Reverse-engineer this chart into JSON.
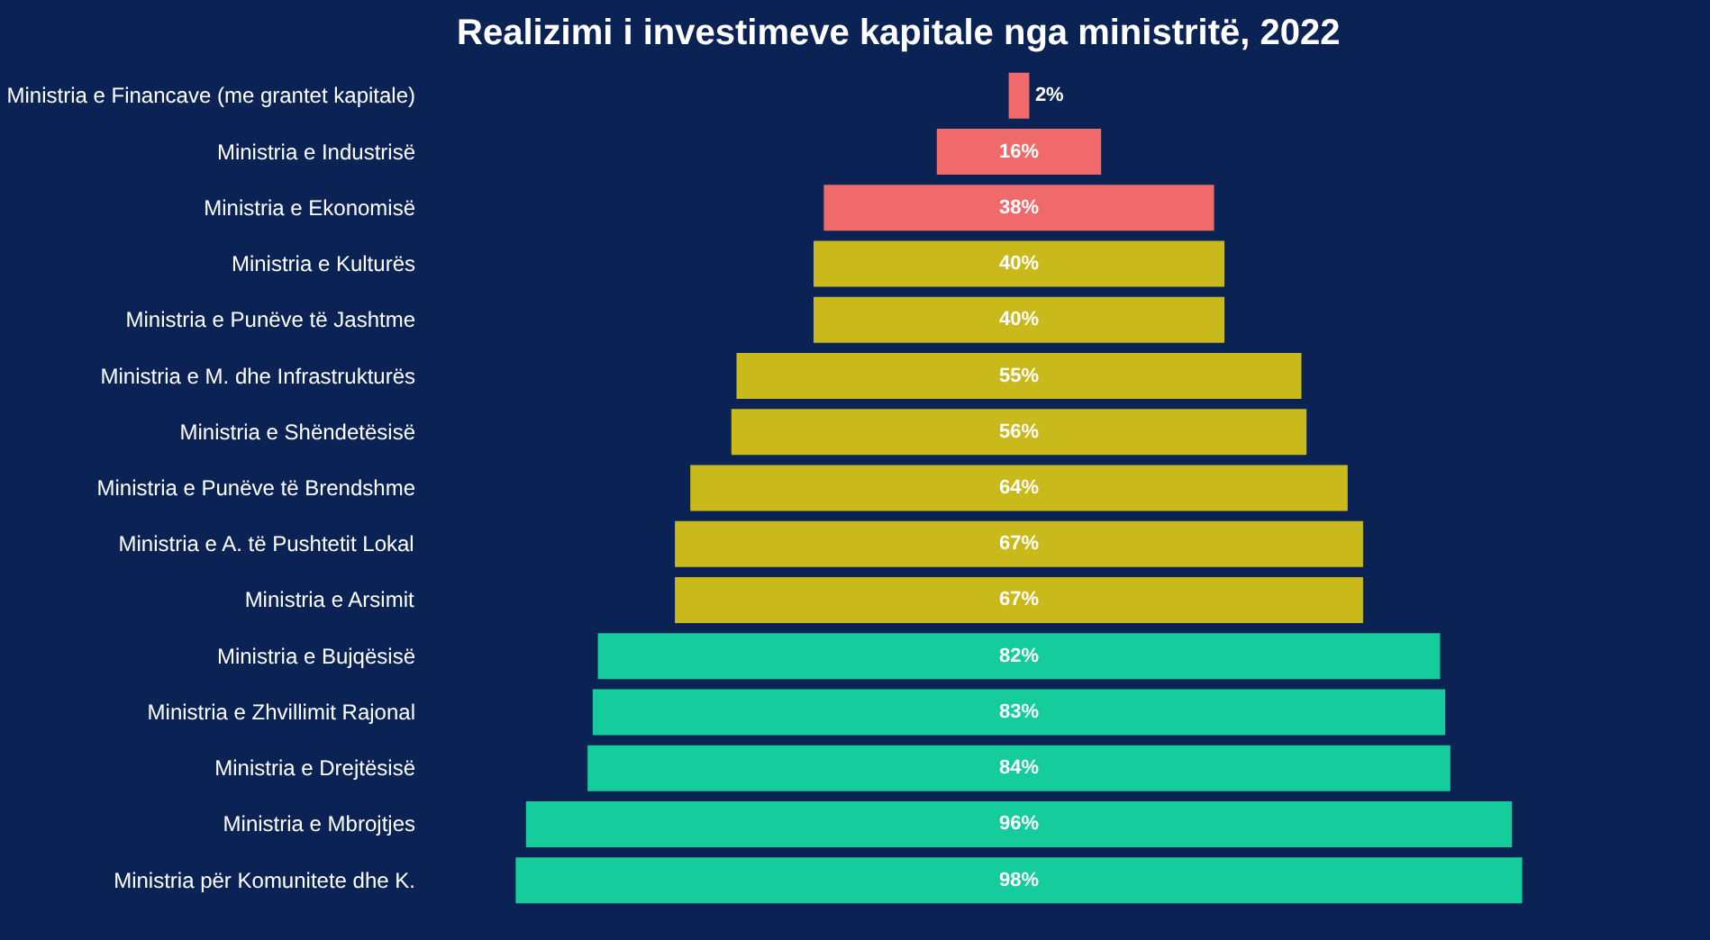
{
  "chart_data": {
    "type": "other",
    "title": "Realizimi i investimeve kapitale nga ministritë, 2022",
    "categories": [
      "Ministria e Financave (me grantet kapitale)",
      "Ministria e Industrisë",
      "Ministria e Ekonomisë",
      "Ministria e Kulturës",
      "Ministria e Punëve të Jashtme",
      "Ministria e M. dhe Infrastrukturës",
      "Ministria e Shëndetësisë",
      "Ministria e Punëve të Brendshme",
      "Ministria e A. të Pushtetit Lokal",
      "Ministria e Arsimit",
      "Ministria e Bujqësisë",
      "Ministria e Zhvillimit Rajonal",
      "Ministria e Drejtësisë",
      "Ministria e Mbrojtjes",
      "Ministria për Komunitete dhe K."
    ],
    "values": [
      2,
      16,
      38,
      40,
      40,
      55,
      56,
      64,
      67,
      67,
      82,
      83,
      84,
      96,
      98
    ],
    "colors": [
      "#f06a6c",
      "#f06a6c",
      "#f06a6c",
      "#c9b91a",
      "#c9b91a",
      "#c9b91a",
      "#c9b91a",
      "#c9b91a",
      "#c9b91a",
      "#c9b91a",
      "#14cc9c",
      "#14cc9c",
      "#14cc9c",
      "#14cc9c",
      "#14cc9c"
    ],
    "value_labels": [
      "2%",
      "16%",
      "38%",
      "40%",
      "40%",
      "55%",
      "56%",
      "64%",
      "67%",
      "67%",
      "82%",
      "83%",
      "84%",
      "96%",
      "98%"
    ]
  }
}
